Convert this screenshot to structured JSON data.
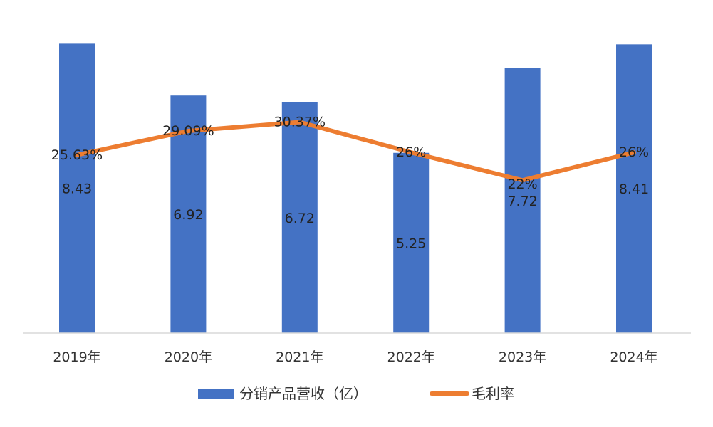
{
  "chart_data": {
    "type": "bar",
    "categories": [
      "2019年",
      "2020年",
      "2021年",
      "2022年",
      "2023年",
      "2024年"
    ],
    "series": [
      {
        "name": "分销产品营收（亿）",
        "type": "bar",
        "axis": "left",
        "values": [
          8.43,
          6.92,
          6.72,
          5.25,
          7.72,
          8.41
        ],
        "labels": [
          "8.43",
          "6.92",
          "6.72",
          "5.25",
          "7.72",
          "8.41"
        ],
        "color": "#4472C4"
      },
      {
        "name": "毛利率",
        "type": "line",
        "axis": "right",
        "values": [
          25.63,
          29.09,
          30.37,
          26,
          22,
          26
        ],
        "labels": [
          "25.63%",
          "29.09%",
          "30.37%",
          "26%",
          "22%",
          "26%"
        ],
        "color": "#ED7D31"
      }
    ],
    "ylim_left": [
      0,
      8.5
    ],
    "ylim_right": [
      0,
      42
    ],
    "grid": false,
    "legend_position": "bottom",
    "title": "",
    "xlabel": "",
    "ylabel": ""
  }
}
